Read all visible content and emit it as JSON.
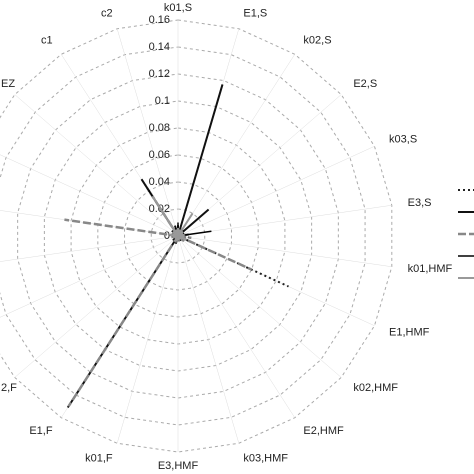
{
  "chart_data": {
    "type": "radar",
    "categories": [
      "k01,S",
      "E1,S",
      "k02,S",
      "E2,S",
      "k03,S",
      "E3,S",
      "k01,HMF",
      "E1,HMF",
      "k02,HMF",
      "E2,HMF",
      "k03,HMF",
      "E3,HMF",
      "k01,F",
      "E1,F",
      "2,F",
      null,
      null,
      null,
      null,
      "EZ",
      "c1",
      "c2"
    ],
    "ylim": [
      0,
      0.16
    ],
    "yticks": [
      0,
      0.02,
      0.04,
      0.06,
      0.08,
      0.1,
      0.12,
      0.14,
      0.16
    ],
    "grid": true,
    "legend": "right",
    "series": [
      {
        "color": "#222222",
        "dash": "2,3",
        "width": 2,
        "values": [
          0.005,
          0.004,
          0.005,
          0.006,
          0.004,
          0.006,
          0.008,
          0.09,
          0.005,
          0.004,
          0.004,
          0.003,
          0.004,
          0.005,
          0.004,
          0.004,
          0.004,
          0.005,
          0.004,
          0.005,
          0.045,
          0.006
        ]
      },
      {
        "color": "#111111",
        "dash": "none",
        "width": 2,
        "values": [
          0.008,
          0.117,
          0.006,
          0.03,
          0.005,
          0.008,
          0.006,
          0.01,
          0.005,
          0.004,
          0.004,
          0.004,
          0.006,
          0.151,
          0.005,
          0.004,
          0.004,
          0.006,
          0.004,
          0.006,
          0.05,
          0.008
        ]
      },
      {
        "color": "#888888",
        "dash": "8,3",
        "width": 2.5,
        "values": [
          0.004,
          0.006,
          0.004,
          0.005,
          0.004,
          0.006,
          0.01,
          0.06,
          0.006,
          0.004,
          0.004,
          0.003,
          0.005,
          0.15,
          0.004,
          0.004,
          0.005,
          0.085,
          0.005,
          0.005,
          0.04,
          0.005
        ]
      },
      {
        "color": "#000000",
        "dash": "none",
        "width": 1.5,
        "values": [
          0.01,
          0.006,
          0.005,
          0.006,
          0.004,
          0.025,
          0.005,
          0.006,
          0.004,
          0.004,
          0.003,
          0.003,
          0.004,
          0.006,
          0.004,
          0.003,
          0.004,
          0.005,
          0.004,
          0.005,
          0.04,
          0.006
        ]
      },
      {
        "color": "#999999",
        "dash": "none",
        "width": 2,
        "values": [
          0.006,
          0.005,
          0.02,
          0.005,
          0.004,
          0.005,
          0.005,
          0.007,
          0.004,
          0.003,
          0.003,
          0.003,
          0.004,
          0.005,
          0.003,
          0.003,
          0.004,
          0.006,
          0.004,
          0.005,
          0.035,
          0.005
        ]
      }
    ]
  }
}
